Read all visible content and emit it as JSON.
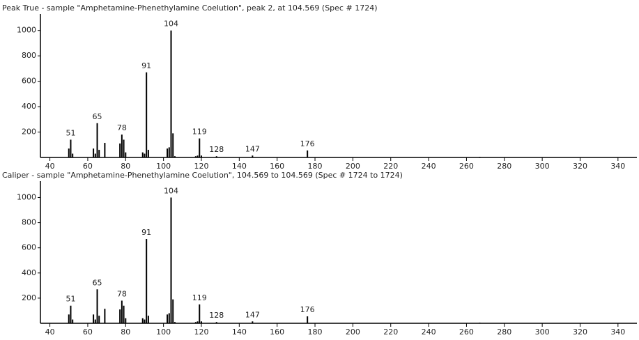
{
  "chart_data": [
    {
      "type": "bar",
      "title": "Peak True - sample \"Amphetamine-Phenethylamine Coelution\", peak 2, at 104.569 (Spec # 1724)",
      "x": [
        50,
        51,
        52,
        63,
        64,
        65,
        66,
        69,
        77,
        78,
        79,
        80,
        89,
        90,
        91,
        92,
        102,
        103,
        104,
        105,
        106,
        117,
        118,
        119,
        120,
        128,
        147,
        176,
        267
      ],
      "values": [
        70,
        140,
        30,
        70,
        30,
        270,
        60,
        115,
        110,
        180,
        140,
        40,
        40,
        30,
        670,
        60,
        70,
        80,
        1000,
        190,
        10,
        10,
        15,
        150,
        15,
        10,
        15,
        55,
        5
      ],
      "labeled_peaks": [
        51,
        65,
        78,
        91,
        104,
        119,
        128,
        147,
        176
      ],
      "color": "#000000",
      "xlim": [
        35,
        350
      ],
      "xticks": [
        40,
        60,
        80,
        100,
        120,
        140,
        160,
        180,
        200,
        220,
        240,
        260,
        280,
        300,
        320,
        340
      ],
      "ylim": [
        0,
        1130
      ],
      "yticks": [
        200,
        400,
        600,
        800,
        1000
      ]
    },
    {
      "type": "bar",
      "title": "Caliper - sample \"Amphetamine-Phenethylamine Coelution\",  104.569 to 104.569 (Spec # 1724 to 1724)",
      "x": [
        50,
        51,
        52,
        63,
        64,
        65,
        66,
        69,
        77,
        78,
        79,
        80,
        89,
        90,
        91,
        92,
        102,
        103,
        104,
        105,
        106,
        117,
        118,
        119,
        120,
        128,
        147,
        176,
        267
      ],
      "values": [
        70,
        140,
        30,
        70,
        30,
        270,
        60,
        115,
        110,
        180,
        140,
        40,
        40,
        30,
        670,
        60,
        70,
        80,
        1000,
        190,
        10,
        10,
        15,
        150,
        15,
        10,
        15,
        55,
        5
      ],
      "labeled_peaks": [
        51,
        65,
        78,
        91,
        104,
        119,
        128,
        147,
        176
      ],
      "color": "#000000",
      "xlim": [
        35,
        350
      ],
      "xticks": [
        40,
        60,
        80,
        100,
        120,
        140,
        160,
        180,
        200,
        220,
        240,
        260,
        280,
        300,
        320,
        340
      ],
      "ylim": [
        0,
        1130
      ],
      "yticks": [
        200,
        400,
        600,
        800,
        1000
      ]
    }
  ]
}
